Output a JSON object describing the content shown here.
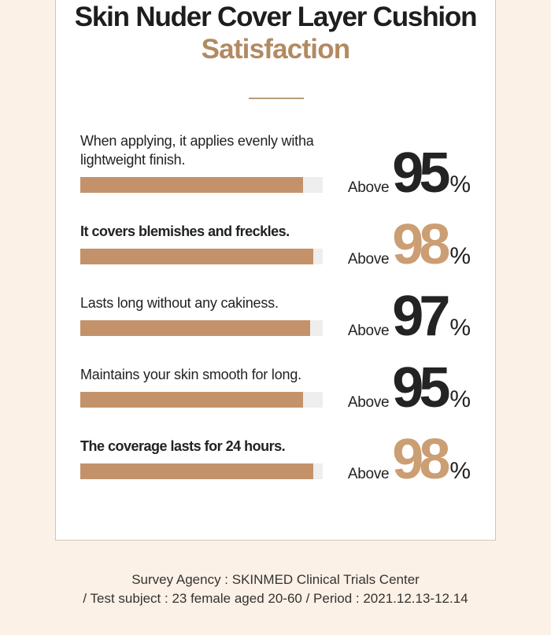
{
  "header": {
    "title": "Skin Nuder Cover Layer Cushion",
    "subtitle": "Satisfaction"
  },
  "colors": {
    "accent": "#c4926a",
    "highlight_number": "#cb9e73",
    "track": "#eeeeee",
    "background": "#fcf1e6"
  },
  "chart_data": {
    "type": "bar",
    "title": "Satisfaction",
    "xlabel": "",
    "ylabel": "",
    "ylim": [
      0,
      100
    ],
    "prefix": "Above",
    "unit": "%",
    "categories": [
      "When applying, it applies evenly witha lightweight finish.",
      "It covers blemishes and freckles.",
      "Lasts long without any cakiness.",
      "Maintains your skin smooth for long.",
      "The coverage lasts for 24 hours."
    ],
    "values": [
      95,
      98,
      97,
      95,
      98
    ],
    "highlighted": [
      false,
      true,
      false,
      false,
      true
    ],
    "bold_label": [
      false,
      true,
      false,
      false,
      true
    ]
  },
  "footer": {
    "line1": "Survey Agency : SKINMED Clinical Trials Center",
    "line2": "/ Test subject : 23 female aged 20-60 / Period : 2021.12.13-12.14"
  }
}
